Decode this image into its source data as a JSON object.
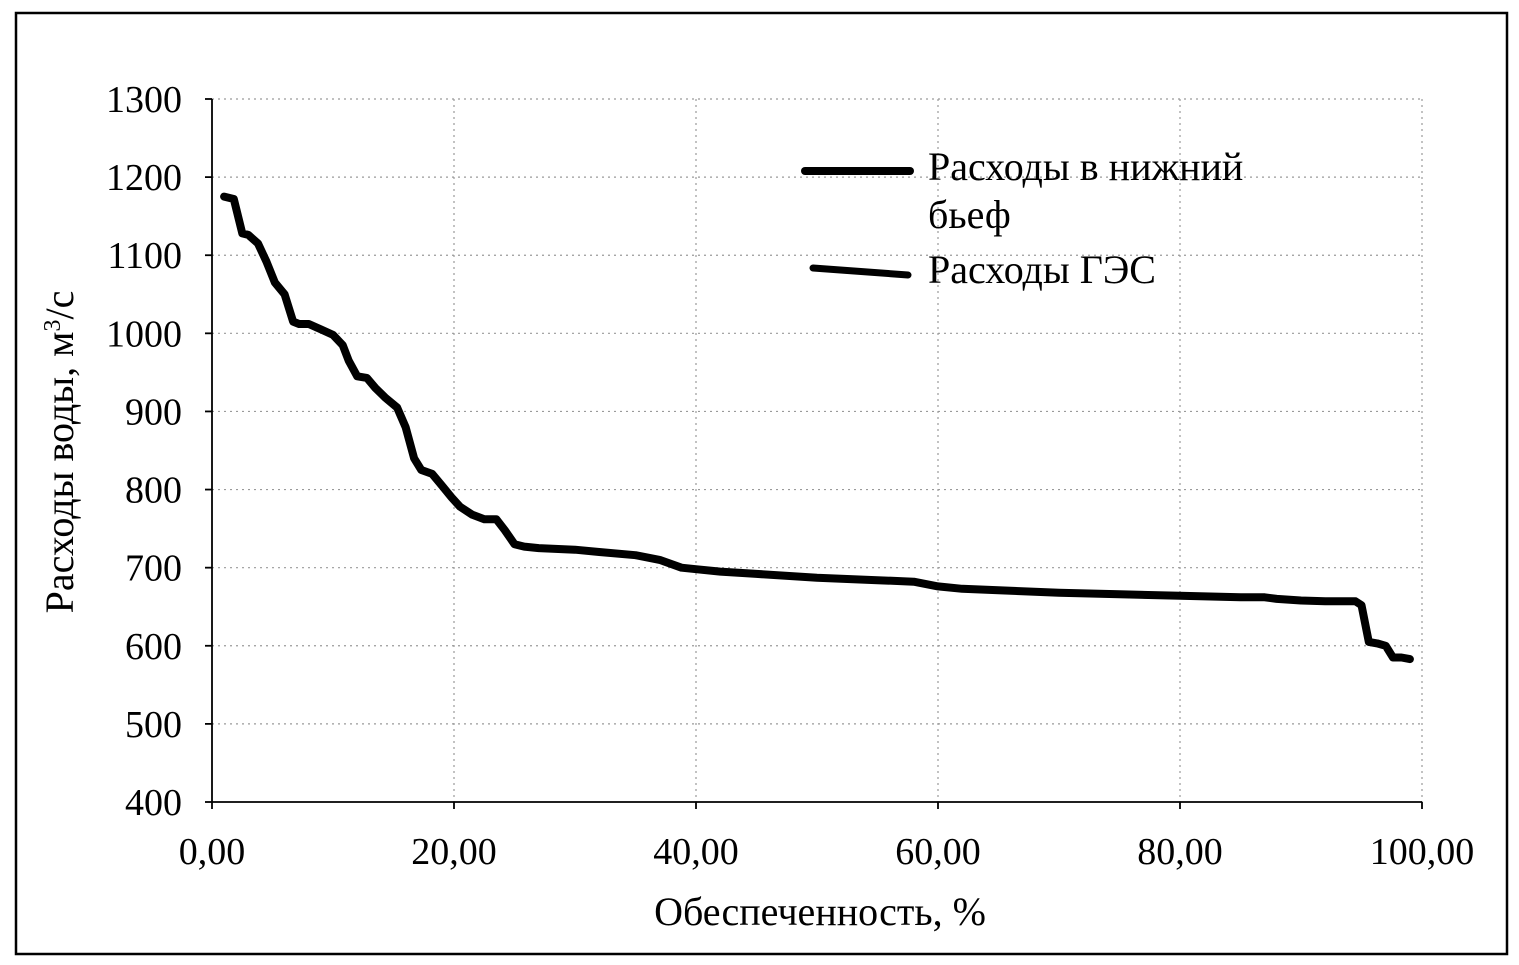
{
  "chart_data": {
    "type": "line",
    "xlabel": "Обеспеченность, %",
    "ylabel_main": "Расходы воды, м",
    "ylabel_sup": "3",
    "ylabel_tail": "/с",
    "xlim": [
      0,
      100
    ],
    "ylim": [
      400,
      1300
    ],
    "x_ticks": [
      0,
      20,
      40,
      60,
      80,
      100
    ],
    "x_tick_labels": [
      "0,00",
      "20,00",
      "40,00",
      "60,00",
      "80,00",
      "100,00"
    ],
    "y_ticks": [
      400,
      500,
      600,
      700,
      800,
      900,
      1000,
      1100,
      1200,
      1300
    ],
    "y_tick_labels": [
      "400",
      "500",
      "600",
      "700",
      "800",
      "900",
      "1000",
      "1100",
      "1200",
      "1300"
    ],
    "grid": true,
    "legend_position": "top-right",
    "series": [
      {
        "name": "Расходы в нижний бьеф",
        "legend_line1": "Расходы в нижний",
        "legend_line2": "бьеф",
        "x": [
          1.0,
          1.8,
          2.5,
          3.0,
          3.8,
          4.5,
          5.2,
          6.0,
          6.7,
          7.2,
          8.0,
          9.0,
          10.0,
          10.8,
          11.3,
          12.0,
          12.8,
          13.5,
          14.3,
          15.3,
          16.0,
          16.7,
          17.3,
          18.2,
          19.0,
          19.8,
          20.5,
          21.5,
          22.5,
          23.5,
          24.2,
          25.0,
          25.8,
          27.0,
          30.0,
          32.0,
          35.0,
          37.0,
          38.8,
          40.0,
          42.0,
          45.0,
          50.0,
          55.0,
          58.0,
          60.0,
          62.0,
          65.0,
          70.0,
          75.0,
          80.0,
          85.0,
          87.0,
          88.0,
          90.0,
          92.0,
          94.5,
          95.0,
          95.6,
          96.3,
          97.0,
          97.6,
          98.3,
          99.0
        ],
        "values": [
          1175,
          1172,
          1128,
          1126,
          1115,
          1092,
          1065,
          1050,
          1015,
          1012,
          1012,
          1005,
          998,
          985,
          965,
          945,
          943,
          930,
          918,
          905,
          880,
          840,
          825,
          820,
          805,
          790,
          778,
          768,
          762,
          762,
          748,
          730,
          727,
          725,
          723,
          720,
          716,
          710,
          700,
          698,
          695,
          692,
          687,
          684,
          682,
          676,
          673,
          671,
          668,
          666,
          664,
          662,
          662,
          660,
          658,
          657,
          657,
          652,
          605,
          603,
          600,
          585,
          585,
          583
        ]
      },
      {
        "name": "Расходы ГЭС",
        "x": [],
        "values": []
      }
    ]
  }
}
